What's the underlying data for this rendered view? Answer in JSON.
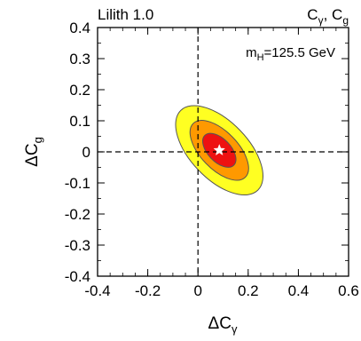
{
  "chart_data": {
    "type": "contour",
    "header_left": "Lilith 1.0",
    "header_right": {
      "main": "C",
      "sub1": "γ",
      "sep": ", C",
      "sub2": "g"
    },
    "xlabel": {
      "main": "ΔC",
      "sub": "γ"
    },
    "ylabel": {
      "main": "ΔC",
      "sub": "g"
    },
    "xlim": [
      -0.4,
      0.6
    ],
    "ylim": [
      -0.4,
      0.4
    ],
    "xticks": [
      -0.4,
      -0.2,
      0,
      0.2,
      0.4,
      0.6
    ],
    "xtick_labels": [
      "-0.4",
      "-0.2",
      "0",
      "0.2",
      "0.4",
      "0.6"
    ],
    "yticks": [
      -0.4,
      -0.3,
      -0.2,
      -0.1,
      0,
      0.1,
      0.2,
      0.3,
      0.4
    ],
    "ytick_labels": [
      "-0.4",
      "-0.3",
      "-0.2",
      "-0.1",
      "0",
      "0.1",
      "0.2",
      "0.3",
      "0.4"
    ],
    "annotation": {
      "main": "m",
      "sub": "H",
      "rest": "=125.5 GeV"
    },
    "best_fit": {
      "x": 0.085,
      "y": 0.005,
      "color": "#ffffff"
    },
    "reference_lines": {
      "x": 0,
      "y": 0
    },
    "regions": [
      {
        "level": "3-sigma",
        "color": "#ffff22",
        "center": [
          0.085,
          0.005
        ],
        "semi_axes": [
          0.2,
          0.1
        ],
        "angle_deg": -40
      },
      {
        "level": "2-sigma",
        "color": "#ff9900",
        "center": [
          0.085,
          0.005
        ],
        "semi_axes": [
          0.135,
          0.065
        ],
        "angle_deg": -40
      },
      {
        "level": "1-sigma",
        "color": "#ee1111",
        "center": [
          0.085,
          0.005
        ],
        "semi_axes": [
          0.075,
          0.04
        ],
        "angle_deg": -40
      }
    ]
  }
}
